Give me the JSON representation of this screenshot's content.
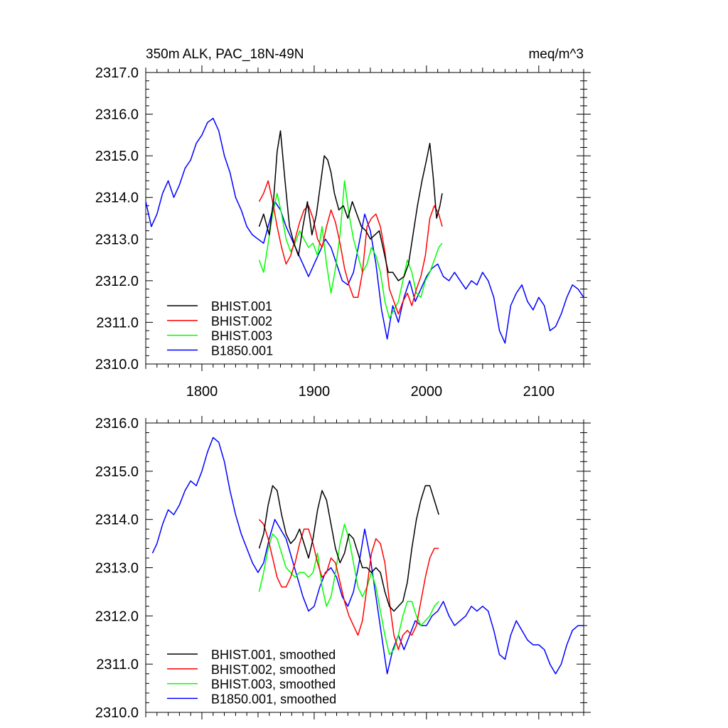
{
  "chart_data": [
    {
      "type": "line",
      "title_left": "350m ALK, PAC_18N-49N",
      "title_right": "meq/m^3",
      "xlim": [
        1750,
        2140
      ],
      "ylim": [
        2310.0,
        2317.0
      ],
      "xticks": [
        1800,
        1900,
        2000,
        2100
      ],
      "yticks": [
        2310.0,
        2311.0,
        2312.0,
        2313.0,
        2314.0,
        2315.0,
        2316.0,
        2317.0
      ],
      "legend_placement": "lower-left",
      "series": [
        {
          "name": "BHIST.001",
          "color": "#000000",
          "x": [
            1851,
            1855,
            1860,
            1864,
            1867,
            1870,
            1874,
            1878,
            1882,
            1886,
            1890,
            1894,
            1898,
            1902,
            1906,
            1909,
            1912,
            1915,
            1918,
            1922,
            1926,
            1930,
            1934,
            1938,
            1942,
            1946,
            1950,
            1954,
            1958,
            1962,
            1966,
            1970,
            1975,
            1980,
            1984,
            1988,
            1992,
            1996,
            2000,
            2003,
            2006,
            2009,
            2012,
            2014
          ],
          "values": [
            2313.3,
            2313.6,
            2313.1,
            2314.0,
            2315.1,
            2315.6,
            2314.4,
            2313.3,
            2312.9,
            2312.6,
            2313.3,
            2313.9,
            2313.1,
            2313.6,
            2314.4,
            2315.0,
            2314.9,
            2314.6,
            2314.1,
            2313.7,
            2313.8,
            2313.5,
            2313.9,
            2313.6,
            2313.3,
            2313.2,
            2313.0,
            2313.1,
            2313.2,
            2312.7,
            2312.2,
            2312.2,
            2312.0,
            2312.1,
            2312.4,
            2313.1,
            2313.8,
            2314.4,
            2314.9,
            2315.3,
            2314.5,
            2313.5,
            2313.8,
            2314.1
          ]
        },
        {
          "name": "BHIST.002",
          "color": "#ff0000",
          "x": [
            1851,
            1855,
            1859,
            1863,
            1867,
            1871,
            1875,
            1879,
            1883,
            1887,
            1891,
            1895,
            1899,
            1903,
            1907,
            1911,
            1915,
            1919,
            1923,
            1927,
            1931,
            1935,
            1939,
            1943,
            1947,
            1951,
            1955,
            1959,
            1963,
            1967,
            1971,
            1975,
            1979,
            1983,
            1987,
            1991,
            1995,
            1999,
            2003,
            2007,
            2011,
            2014
          ],
          "values": [
            2313.9,
            2314.1,
            2314.4,
            2313.9,
            2313.3,
            2312.8,
            2312.4,
            2312.6,
            2313.0,
            2313.4,
            2313.7,
            2313.8,
            2313.5,
            2313.0,
            2312.8,
            2313.3,
            2313.7,
            2313.4,
            2312.9,
            2312.3,
            2311.9,
            2311.6,
            2311.6,
            2312.2,
            2313.3,
            2313.5,
            2313.6,
            2313.3,
            2312.7,
            2311.8,
            2311.5,
            2311.2,
            2311.5,
            2311.7,
            2311.4,
            2311.8,
            2312.1,
            2312.6,
            2313.5,
            2313.8,
            2313.6,
            2313.3
          ]
        },
        {
          "name": "BHIST.003",
          "color": "#00ff00",
          "x": [
            1851,
            1855,
            1859,
            1863,
            1867,
            1871,
            1875,
            1879,
            1883,
            1887,
            1891,
            1895,
            1899,
            1903,
            1907,
            1911,
            1915,
            1919,
            1923,
            1927,
            1931,
            1935,
            1939,
            1943,
            1947,
            1951,
            1955,
            1959,
            1963,
            1967,
            1971,
            1975,
            1979,
            1983,
            1987,
            1991,
            1995,
            1999,
            2003,
            2007,
            2011,
            2014
          ],
          "values": [
            2312.5,
            2312.2,
            2312.9,
            2313.6,
            2314.1,
            2313.6,
            2313.0,
            2312.7,
            2312.9,
            2313.2,
            2313.0,
            2312.8,
            2312.9,
            2312.6,
            2313.3,
            2312.4,
            2311.7,
            2312.3,
            2313.1,
            2314.4,
            2313.6,
            2313.0,
            2312.6,
            2312.2,
            2312.4,
            2312.8,
            2312.6,
            2312.2,
            2311.5,
            2311.1,
            2311.3,
            2311.5,
            2312.0,
            2312.5,
            2312.2,
            2311.7,
            2311.6,
            2312.0,
            2312.2,
            2312.5,
            2312.8,
            2312.9
          ]
        },
        {
          "name": "B1850.001",
          "color": "#0000ff",
          "x": [
            1750,
            1755,
            1760,
            1765,
            1770,
            1775,
            1780,
            1785,
            1790,
            1795,
            1800,
            1805,
            1810,
            1815,
            1820,
            1825,
            1830,
            1835,
            1840,
            1845,
            1850,
            1855,
            1860,
            1865,
            1870,
            1875,
            1880,
            1885,
            1890,
            1895,
            1900,
            1905,
            1910,
            1915,
            1920,
            1925,
            1930,
            1935,
            1940,
            1945,
            1950,
            1955,
            1960,
            1965,
            1970,
            1975,
            1980,
            1985,
            1990,
            1995,
            2000,
            2005,
            2010,
            2015,
            2020,
            2025,
            2030,
            2035,
            2040,
            2045,
            2050,
            2055,
            2060,
            2065,
            2070,
            2075,
            2080,
            2085,
            2090,
            2095,
            2100,
            2105,
            2110,
            2115,
            2120,
            2125,
            2130,
            2135,
            2140
          ],
          "values": [
            2313.9,
            2313.3,
            2313.6,
            2314.1,
            2314.4,
            2314.0,
            2314.3,
            2314.7,
            2314.9,
            2315.3,
            2315.5,
            2315.8,
            2315.9,
            2315.6,
            2315.0,
            2314.6,
            2314.0,
            2313.7,
            2313.3,
            2313.1,
            2313.0,
            2312.9,
            2313.4,
            2313.9,
            2313.7,
            2313.3,
            2313.0,
            2312.7,
            2312.4,
            2312.1,
            2312.4,
            2312.7,
            2313.0,
            2312.8,
            2312.4,
            2312.0,
            2311.9,
            2312.2,
            2312.9,
            2313.6,
            2313.2,
            2312.4,
            2311.3,
            2310.6,
            2311.4,
            2311.0,
            2311.6,
            2312.0,
            2311.5,
            2311.8,
            2312.1,
            2312.3,
            2312.4,
            2312.1,
            2312.0,
            2312.2,
            2312.0,
            2311.8,
            2312.0,
            2311.9,
            2312.2,
            2312.0,
            2311.6,
            2310.8,
            2310.5,
            2311.4,
            2311.7,
            2311.9,
            2311.5,
            2311.3,
            2311.6,
            2311.4,
            2310.8,
            2310.9,
            2311.2,
            2311.6,
            2311.9,
            2311.8,
            2311.6
          ]
        }
      ]
    },
    {
      "type": "line",
      "xlim": [
        1750,
        2140
      ],
      "ylim": [
        2310.0,
        2316.0
      ],
      "yticks": [
        2310.0,
        2311.0,
        2312.0,
        2313.0,
        2314.0,
        2315.0,
        2316.0
      ],
      "legend_placement": "lower-left",
      "series": [
        {
          "name": "BHIST.001, smoothed",
          "color": "#000000",
          "x": [
            1851,
            1855,
            1859,
            1863,
            1867,
            1871,
            1875,
            1879,
            1883,
            1887,
            1891,
            1895,
            1899,
            1903,
            1907,
            1911,
            1915,
            1919,
            1923,
            1927,
            1931,
            1935,
            1939,
            1943,
            1947,
            1951,
            1955,
            1959,
            1963,
            1967,
            1971,
            1975,
            1979,
            1983,
            1987,
            1991,
            1995,
            1999,
            2003,
            2007,
            2011
          ],
          "values": [
            2313.4,
            2313.7,
            2314.3,
            2314.7,
            2314.6,
            2314.1,
            2313.7,
            2313.5,
            2313.6,
            2313.8,
            2313.5,
            2313.2,
            2313.6,
            2314.2,
            2314.6,
            2314.4,
            2313.9,
            2313.4,
            2313.1,
            2313.3,
            2313.7,
            2313.6,
            2313.3,
            2313.0,
            2313.0,
            2312.9,
            2313.0,
            2312.9,
            2312.5,
            2312.2,
            2312.1,
            2312.2,
            2312.3,
            2312.7,
            2313.4,
            2314.0,
            2314.4,
            2314.7,
            2314.7,
            2314.4,
            2314.1
          ]
        },
        {
          "name": "BHIST.002, smoothed",
          "color": "#ff0000",
          "x": [
            1851,
            1855,
            1859,
            1863,
            1867,
            1871,
            1875,
            1879,
            1883,
            1887,
            1891,
            1895,
            1899,
            1903,
            1907,
            1911,
            1915,
            1919,
            1923,
            1927,
            1931,
            1935,
            1939,
            1943,
            1947,
            1951,
            1955,
            1959,
            1963,
            1967,
            1971,
            1975,
            1979,
            1983,
            1987,
            1991,
            1995,
            1999,
            2003,
            2007,
            2011
          ],
          "values": [
            2314.0,
            2313.9,
            2313.6,
            2313.2,
            2312.8,
            2312.6,
            2312.6,
            2312.8,
            2313.1,
            2313.5,
            2313.8,
            2313.8,
            2313.5,
            2313.1,
            2312.8,
            2312.9,
            2313.2,
            2313.1,
            2312.7,
            2312.3,
            2312.0,
            2311.8,
            2311.6,
            2311.9,
            2312.6,
            2313.3,
            2313.6,
            2313.5,
            2313.1,
            2312.3,
            2311.6,
            2311.3,
            2311.6,
            2311.7,
            2311.6,
            2311.8,
            2312.3,
            2312.8,
            2313.2,
            2313.4,
            2313.4
          ]
        },
        {
          "name": "BHIST.003, smoothed",
          "color": "#00ff00",
          "x": [
            1851,
            1855,
            1859,
            1863,
            1867,
            1871,
            1875,
            1879,
            1883,
            1887,
            1891,
            1895,
            1899,
            1903,
            1907,
            1911,
            1915,
            1919,
            1923,
            1927,
            1931,
            1935,
            1939,
            1943,
            1947,
            1951,
            1955,
            1959,
            1963,
            1967,
            1971,
            1975,
            1979,
            1983,
            1987,
            1991,
            1995,
            1999,
            2003,
            2007,
            2011
          ],
          "values": [
            2312.5,
            2312.9,
            2313.4,
            2313.7,
            2313.6,
            2313.3,
            2313.0,
            2312.9,
            2312.8,
            2312.9,
            2312.9,
            2312.8,
            2312.9,
            2313.3,
            2312.6,
            2312.2,
            2312.4,
            2312.9,
            2313.5,
            2313.9,
            2313.6,
            2313.1,
            2312.6,
            2312.4,
            2312.6,
            2312.9,
            2312.6,
            2312.1,
            2311.6,
            2311.2,
            2311.3,
            2311.6,
            2312.0,
            2312.3,
            2312.3,
            2312.0,
            2311.8,
            2311.9,
            2312.0,
            2312.2,
            2312.3
          ]
        },
        {
          "name": "B1850.001, smoothed",
          "color": "#0000ff",
          "x": [
            1756,
            1760,
            1765,
            1770,
            1775,
            1780,
            1785,
            1790,
            1795,
            1800,
            1805,
            1810,
            1815,
            1820,
            1825,
            1830,
            1835,
            1840,
            1845,
            1850,
            1855,
            1860,
            1865,
            1870,
            1875,
            1880,
            1885,
            1890,
            1895,
            1900,
            1905,
            1910,
            1915,
            1920,
            1925,
            1930,
            1935,
            1940,
            1945,
            1950,
            1955,
            1960,
            1965,
            1970,
            1975,
            1980,
            1985,
            1990,
            1995,
            2000,
            2005,
            2010,
            2015,
            2020,
            2025,
            2030,
            2035,
            2040,
            2045,
            2050,
            2055,
            2060,
            2065,
            2070,
            2075,
            2080,
            2085,
            2090,
            2095,
            2100,
            2105,
            2110,
            2115,
            2120,
            2125,
            2130,
            2135,
            2140
          ],
          "values": [
            2313.3,
            2313.5,
            2313.9,
            2314.2,
            2314.1,
            2314.3,
            2314.6,
            2314.8,
            2314.7,
            2315.0,
            2315.4,
            2315.7,
            2315.6,
            2315.2,
            2314.6,
            2314.1,
            2313.7,
            2313.4,
            2313.1,
            2312.9,
            2313.1,
            2313.6,
            2314.0,
            2313.8,
            2313.6,
            2313.2,
            2312.8,
            2312.4,
            2312.1,
            2312.2,
            2312.6,
            2312.9,
            2313.0,
            2312.8,
            2312.4,
            2312.2,
            2312.5,
            2313.1,
            2313.8,
            2313.2,
            2312.4,
            2311.6,
            2310.8,
            2311.3,
            2311.6,
            2311.3,
            2311.6,
            2311.9,
            2311.8,
            2311.8,
            2312.0,
            2312.1,
            2312.3,
            2312.0,
            2311.8,
            2311.9,
            2312.0,
            2312.2,
            2312.1,
            2312.2,
            2312.1,
            2311.7,
            2311.2,
            2311.1,
            2311.6,
            2311.9,
            2311.7,
            2311.5,
            2311.4,
            2311.4,
            2311.3,
            2311.0,
            2310.8,
            2311.0,
            2311.4,
            2311.7,
            2311.8,
            2311.8
          ]
        }
      ]
    }
  ]
}
